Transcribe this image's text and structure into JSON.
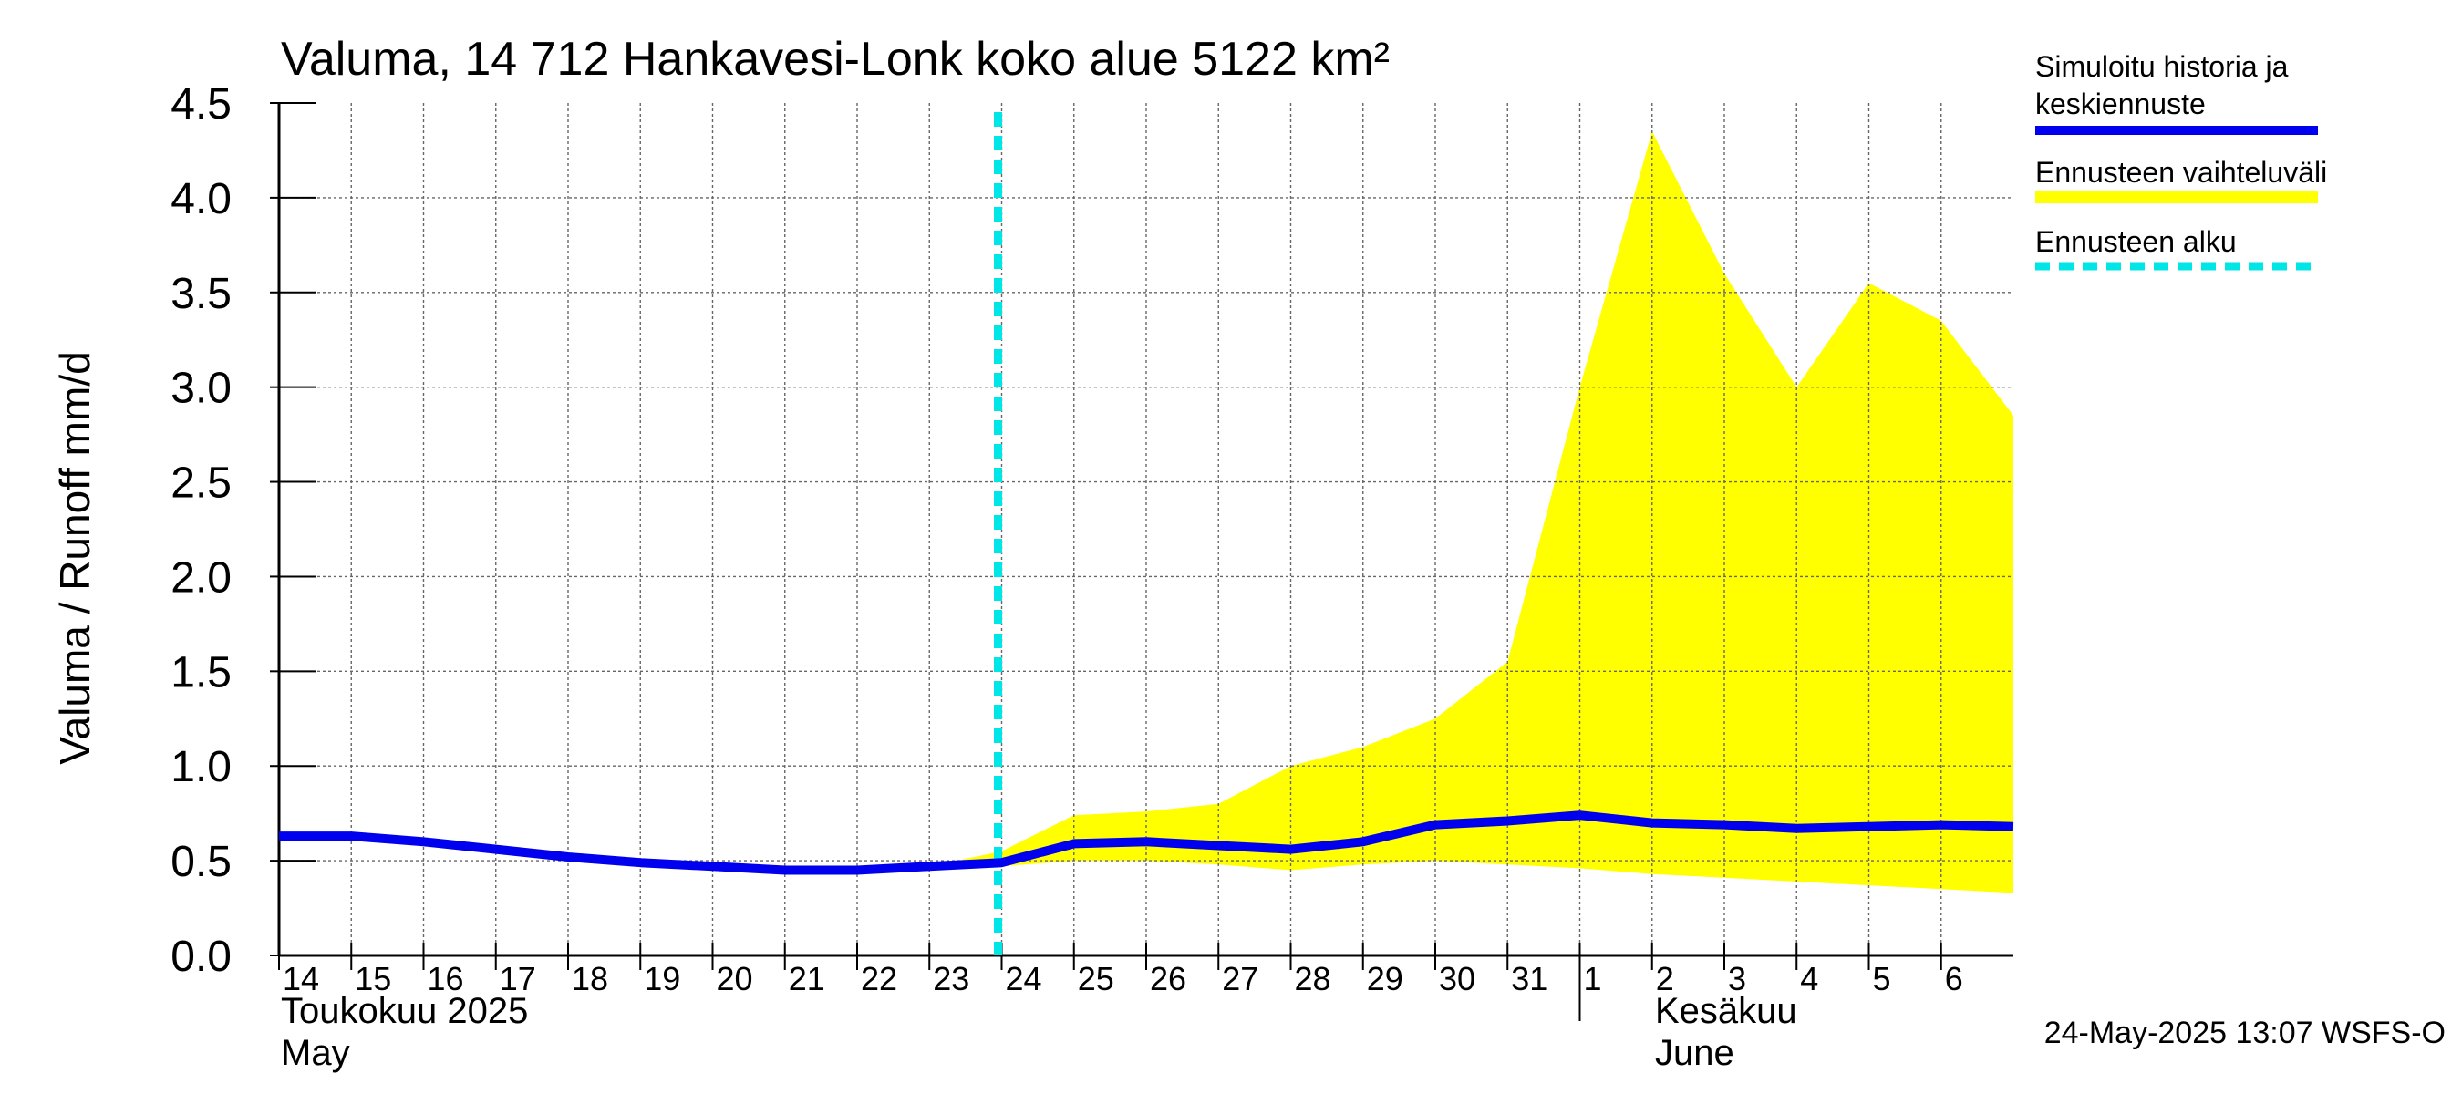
{
  "chart_data": {
    "type": "area",
    "title": "Valuma, 14 712 Hankavesi-Lonk koko alue 5122 km²",
    "ylabel": "Valuma / Runoff    mm/d",
    "ylim": [
      0,
      4.5
    ],
    "yticks": [
      "0.0",
      "0.5",
      "1.0",
      "1.5",
      "2.0",
      "2.5",
      "3.0",
      "3.5",
      "4.0",
      "4.5"
    ],
    "x_start": "2025-05-14",
    "x_end": "2025-06-07",
    "x_tick_labels": [
      "14",
      "15",
      "16",
      "17",
      "18",
      "19",
      "20",
      "21",
      "22",
      "23",
      "24",
      "25",
      "26",
      "27",
      "28",
      "29",
      "30",
      "31",
      "1",
      "2",
      "3",
      "4",
      "5",
      "6"
    ],
    "month_labels": [
      {
        "fi": "Toukokuu  2025",
        "en": "May"
      },
      {
        "fi": "Kesäkuu",
        "en": "June"
      }
    ],
    "forecast_start": "2025-05-24",
    "grid": true,
    "legend_position": "right",
    "legend": [
      {
        "label": "Simuloitu historia ja keskiennuste",
        "color": "#0000ee",
        "style": "solid"
      },
      {
        "label": "Ennusteen vaihteluväli",
        "color": "#ffff00",
        "style": "band"
      },
      {
        "label": "Ennusteen alku",
        "color": "#00e5e5",
        "style": "dashed"
      }
    ],
    "series": [
      {
        "name": "Simuloitu historia ja keskiennuste",
        "x": [
          "2025-05-14",
          "2025-05-15",
          "2025-05-16",
          "2025-05-17",
          "2025-05-18",
          "2025-05-19",
          "2025-05-20",
          "2025-05-21",
          "2025-05-22",
          "2025-05-23",
          "2025-05-24",
          "2025-05-25",
          "2025-05-26",
          "2025-05-27",
          "2025-05-28",
          "2025-05-29",
          "2025-05-30",
          "2025-05-31",
          "2025-06-01",
          "2025-06-02",
          "2025-06-03",
          "2025-06-04",
          "2025-06-05",
          "2025-06-06",
          "2025-06-07"
        ],
        "values": [
          0.63,
          0.63,
          0.6,
          0.56,
          0.52,
          0.49,
          0.47,
          0.45,
          0.45,
          0.47,
          0.49,
          0.59,
          0.6,
          0.58,
          0.56,
          0.6,
          0.69,
          0.71,
          0.74,
          0.7,
          0.69,
          0.67,
          0.68,
          0.69,
          0.68
        ]
      },
      {
        "name": "Ennusteen vaihteluväli",
        "x": [
          "2025-05-23",
          "2025-05-24",
          "2025-05-25",
          "2025-05-26",
          "2025-05-27",
          "2025-05-28",
          "2025-05-29",
          "2025-05-30",
          "2025-05-31",
          "2025-06-01",
          "2025-06-02",
          "2025-06-03",
          "2025-06-04",
          "2025-06-05",
          "2025-06-06",
          "2025-06-07"
        ],
        "upper": [
          0.47,
          0.55,
          0.74,
          0.76,
          0.8,
          1.0,
          1.1,
          1.25,
          1.55,
          3.0,
          4.35,
          3.6,
          3.0,
          3.55,
          3.35,
          2.85
        ],
        "lower": [
          0.47,
          0.47,
          0.5,
          0.5,
          0.48,
          0.45,
          0.48,
          0.5,
          0.48,
          0.46,
          0.43,
          0.41,
          0.39,
          0.37,
          0.35,
          0.33
        ]
      }
    ]
  },
  "footer": {
    "timestamp": "24-May-2025 13:07 WSFS-O"
  }
}
